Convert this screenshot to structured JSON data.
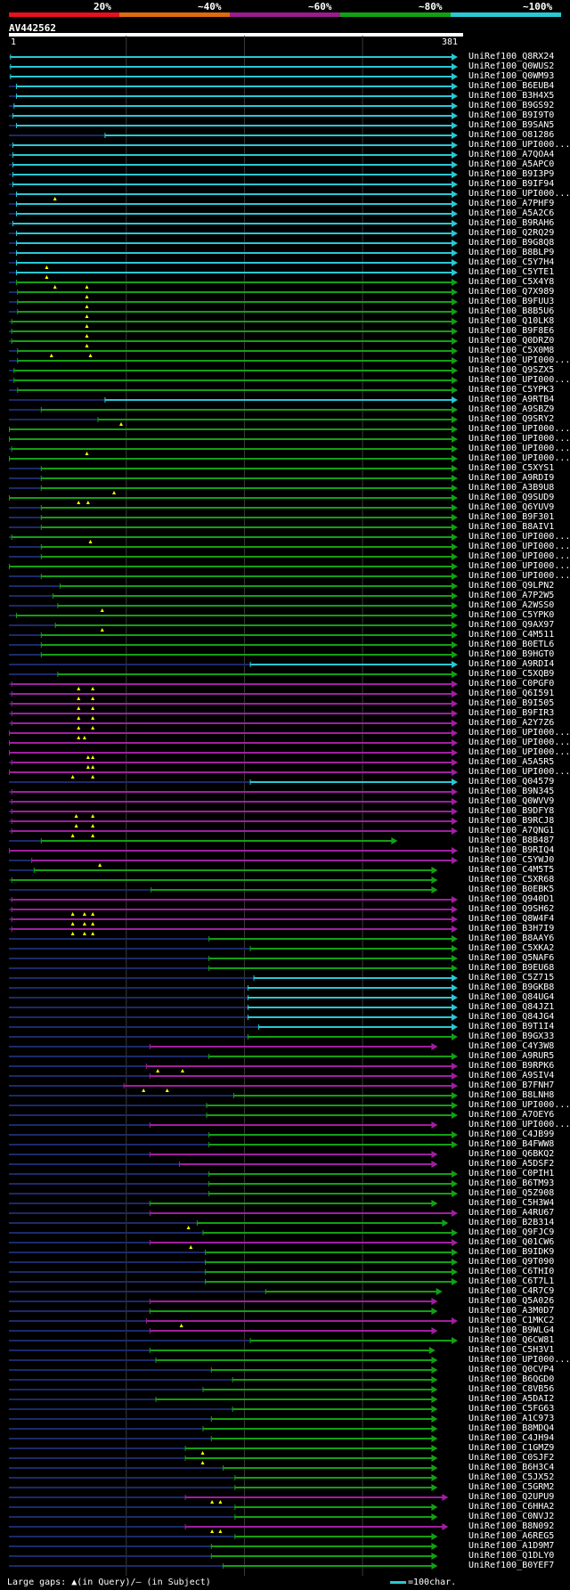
{
  "legend": [
    {
      "label": "20%",
      "color": "#e8101f"
    },
    {
      "label": "~40%",
      "color": "#e06a10"
    },
    {
      "label": "~60%",
      "color": "#9a1c8c"
    },
    {
      "label": "~80%",
      "color": "#13a013"
    },
    {
      "label": "~100%",
      "color": "#29c8d4"
    }
  ],
  "query": {
    "name": "AV442562",
    "start": "1",
    "end": "381",
    "length": 381
  },
  "colors": {
    "cyan": "#29c8d4",
    "green": "#13a013",
    "purple": "#a01fa0",
    "gap": "#1b2a6a",
    "triangle": "#ffff00",
    "grid": "#3a3a3a"
  },
  "footer": {
    "text": "Large gaps: ▲(in Query)/– (in Subject)",
    "scale": "=100char."
  },
  "hits": [
    [
      "UniRef100_Q8RX24",
      "c",
      2,
      381,
      1,
      []
    ],
    [
      "UniRef100_Q0WUS2",
      "c",
      2,
      381,
      1,
      []
    ],
    [
      "UniRef100_Q0WM93",
      "c",
      2,
      381,
      1,
      []
    ],
    [
      "UniRef100_B6EUB4",
      "c",
      7,
      381,
      1,
      []
    ],
    [
      "UniRef100_B3H4X5",
      "c",
      7,
      381,
      1,
      []
    ],
    [
      "UniRef100_B9GS92",
      "c",
      5,
      381,
      1,
      []
    ],
    [
      "UniRef100_B9I9T0",
      "c",
      4,
      381,
      1,
      []
    ],
    [
      "UniRef100_B9SAN5",
      "c",
      7,
      381,
      1,
      []
    ],
    [
      "UniRef100_O81286",
      "c",
      82,
      381,
      1,
      []
    ],
    [
      "UniRef100_UPI000...",
      "c",
      4,
      381,
      1,
      []
    ],
    [
      "UniRef100_A7QOA4",
      "c",
      4,
      381,
      1,
      []
    ],
    [
      "UniRef100_A5APC0",
      "c",
      4,
      381,
      1,
      []
    ],
    [
      "UniRef100_B9I3P9",
      "c",
      4,
      381,
      1,
      []
    ],
    [
      "UniRef100_B9IF94",
      "c",
      4,
      381,
      1,
      []
    ],
    [
      "UniRef100_UPI000...",
      "c",
      7,
      381,
      1,
      [
        40
      ]
    ],
    [
      "UniRef100_A7PHF9",
      "c",
      7,
      381,
      1,
      []
    ],
    [
      "UniRef100_A5A2C6",
      "c",
      7,
      381,
      1,
      []
    ],
    [
      "UniRef100_B9RAH6",
      "c",
      4,
      381,
      1,
      []
    ],
    [
      "UniRef100_Q2RQ29",
      "c",
      7,
      381,
      1,
      []
    ],
    [
      "UniRef100_B9G8Q8",
      "c",
      7,
      381,
      1,
      []
    ],
    [
      "UniRef100_B8BLP9",
      "c",
      7,
      381,
      1,
      []
    ],
    [
      "UniRef100_C5Y7H4",
      "c",
      7,
      381,
      1,
      [
        33
      ]
    ],
    [
      "UniRef100_C5YTE1",
      "c",
      7,
      381,
      1,
      [
        33
      ]
    ],
    [
      "UniRef100_C5X4Y8",
      "g",
      7,
      381,
      1,
      [
        40,
        67
      ]
    ],
    [
      "UniRef100_Q7X989",
      "g",
      8,
      381,
      1,
      [
        67
      ]
    ],
    [
      "UniRef100_B9FUU3",
      "g",
      8,
      381,
      1,
      [
        67
      ]
    ],
    [
      "UniRef100_B8B5U6",
      "g",
      8,
      381,
      1,
      [
        67
      ]
    ],
    [
      "UniRef100_Q10LK8",
      "g",
      3,
      381,
      1,
      [
        67
      ]
    ],
    [
      "UniRef100_B9F8E6",
      "g",
      3,
      381,
      1,
      [
        67
      ]
    ],
    [
      "UniRef100_Q0DRZ0",
      "g",
      3,
      381,
      1,
      [
        67
      ]
    ],
    [
      "UniRef100_C5X0M8",
      "g",
      8,
      381,
      1,
      [
        37,
        70
      ]
    ],
    [
      "UniRef100_UPI000...",
      "g",
      8,
      381,
      1,
      []
    ],
    [
      "UniRef100_Q9SZX5",
      "g",
      5,
      381,
      1,
      []
    ],
    [
      "UniRef100_UPI000...",
      "g",
      5,
      381,
      1,
      []
    ],
    [
      "UniRef100_C5YPK3",
      "g",
      8,
      381,
      1,
      []
    ],
    [
      "UniRef100_A9RTB4",
      "c",
      82,
      381,
      1,
      []
    ],
    [
      "UniRef100_A9SBZ9",
      "g",
      28,
      381,
      1,
      []
    ],
    [
      "UniRef100_Q9SRY2",
      "g",
      76,
      381,
      1,
      [
        96
      ]
    ],
    [
      "UniRef100_UPI000...",
      "g",
      1,
      381,
      1,
      []
    ],
    [
      "UniRef100_UPI000...",
      "g",
      1,
      381,
      1,
      []
    ],
    [
      "UniRef100_UPI000...",
      "g",
      3,
      381,
      1,
      [
        67
      ]
    ],
    [
      "UniRef100_UPI000...",
      "g",
      1,
      381,
      1,
      []
    ],
    [
      "UniRef100_C5XYS1",
      "g",
      28,
      381,
      1,
      []
    ],
    [
      "UniRef100_A9RDI9",
      "g",
      28,
      381,
      1,
      []
    ],
    [
      "UniRef100_A3B9U8",
      "g",
      28,
      381,
      1,
      [
        90
      ]
    ],
    [
      "UniRef100_Q9SUD9",
      "g",
      1,
      381,
      1,
      [
        60,
        68
      ]
    ],
    [
      "UniRef100_Q6YUV9",
      "g",
      28,
      381,
      1,
      []
    ],
    [
      "UniRef100_B9F301",
      "g",
      28,
      381,
      1,
      []
    ],
    [
      "UniRef100_B8AIV1",
      "g",
      28,
      381,
      1,
      []
    ],
    [
      "UniRef100_UPI000...",
      "g",
      3,
      381,
      1,
      [
        70
      ]
    ],
    [
      "UniRef100_UPI000...",
      "g",
      28,
      381,
      1,
      []
    ],
    [
      "UniRef100_UPI000...",
      "g",
      28,
      381,
      1,
      []
    ],
    [
      "UniRef100_UPI000...",
      "g",
      1,
      381,
      1,
      []
    ],
    [
      "UniRef100_UPI000...",
      "g",
      28,
      381,
      1,
      []
    ],
    [
      "UniRef100_Q9LPN2",
      "g",
      44,
      381,
      1,
      []
    ],
    [
      "UniRef100_A7P2W5",
      "g",
      38,
      381,
      1,
      []
    ],
    [
      "UniRef100_A2WSS0",
      "g",
      42,
      381,
      1,
      [
        80
      ]
    ],
    [
      "UniRef100_C5YPK0",
      "g",
      7,
      381,
      1,
      []
    ],
    [
      "UniRef100_Q9AX97",
      "g",
      40,
      381,
      1,
      [
        80
      ]
    ],
    [
      "UniRef100_C4M511",
      "g",
      28,
      381,
      1,
      []
    ],
    [
      "UniRef100_B0ETL6",
      "g",
      28,
      381,
      1,
      []
    ],
    [
      "UniRef100_B9HGT0",
      "g",
      28,
      381,
      1,
      []
    ],
    [
      "UniRef100_A9RDI4",
      "c",
      205,
      381,
      1,
      []
    ],
    [
      "UniRef100_C5XQB9",
      "g",
      42,
      381,
      1,
      []
    ],
    [
      "UniRef100_C0PGF0",
      "p",
      3,
      381,
      1,
      [
        60,
        72
      ]
    ],
    [
      "UniRef100_Q6I591",
      "p",
      3,
      381,
      1,
      [
        60,
        72
      ]
    ],
    [
      "UniRef100_B9I505",
      "p",
      3,
      381,
      1,
      [
        60,
        72
      ]
    ],
    [
      "UniRef100_B9FIR3",
      "p",
      3,
      381,
      1,
      [
        60,
        72
      ]
    ],
    [
      "UniRef100_A2Y7Z6",
      "p",
      3,
      381,
      1,
      [
        60,
        72
      ]
    ],
    [
      "UniRef100_UPI000...",
      "p",
      1,
      381,
      1,
      [
        60,
        65
      ]
    ],
    [
      "UniRef100_UPI000...",
      "p",
      1,
      381,
      1,
      []
    ],
    [
      "UniRef100_UPI000...",
      "p",
      1,
      381,
      1,
      [
        68,
        72
      ]
    ],
    [
      "UniRef100_A5A5R5",
      "p",
      3,
      381,
      1,
      [
        68,
        72
      ]
    ],
    [
      "UniRef100_UPI000...",
      "p",
      1,
      381,
      1,
      [
        55,
        72
      ]
    ],
    [
      "UniRef100_Q04579",
      "c",
      205,
      381,
      1,
      []
    ],
    [
      "UniRef100_B9N345",
      "p",
      3,
      381,
      1,
      []
    ],
    [
      "UniRef100_Q0WVV9",
      "p",
      3,
      381,
      1,
      []
    ],
    [
      "UniRef100_B9DFY8",
      "p",
      3,
      381,
      1,
      [
        58,
        72
      ]
    ],
    [
      "UniRef100_B9RCJ8",
      "p",
      3,
      381,
      1,
      [
        58,
        72
      ]
    ],
    [
      "UniRef100_A7QNG1",
      "p",
      3,
      381,
      1,
      [
        55,
        72
      ]
    ],
    [
      "UniRef100_B8B487",
      "g",
      28,
      330,
      1,
      []
    ],
    [
      "UniRef100_B9RIQ4",
      "p",
      1,
      381,
      1,
      []
    ],
    [
      "UniRef100_C5YWJ0",
      "p",
      20,
      381,
      1,
      [
        78
      ]
    ],
    [
      "UniRef100_C4M5T5",
      "g",
      22,
      364,
      1,
      []
    ],
    [
      "UniRef100_C5XR68",
      "g",
      3,
      364,
      1,
      []
    ],
    [
      "UniRef100_B0EBK5",
      "g",
      121,
      364,
      1,
      []
    ],
    [
      "UniRef100_Q940D1",
      "p",
      3,
      381,
      1,
      []
    ],
    [
      "UniRef100_Q9SH62",
      "p",
      3,
      381,
      1,
      [
        55,
        65,
        72
      ]
    ],
    [
      "UniRef100_Q8W4F4",
      "p",
      3,
      381,
      1,
      [
        55,
        65,
        72
      ]
    ],
    [
      "UniRef100_B3H7I9",
      "p",
      3,
      381,
      1,
      [
        55,
        65,
        72
      ]
    ],
    [
      "UniRef100_B8AAY6",
      "g",
      170,
      381,
      1,
      []
    ],
    [
      "UniRef100_C5XKA2",
      "g",
      205,
      381,
      1,
      []
    ],
    [
      "UniRef100_Q5NAF6",
      "g",
      170,
      381,
      1,
      []
    ],
    [
      "UniRef100_B9EU68",
      "g",
      170,
      381,
      1,
      []
    ],
    [
      "UniRef100_C5Z715",
      "c",
      208,
      381,
      1,
      []
    ],
    [
      "UniRef100_B9GKB8",
      "c",
      203,
      381,
      1,
      []
    ],
    [
      "UniRef100_Q84UG4",
      "c",
      203,
      381,
      1,
      []
    ],
    [
      "UniRef100_Q84JZ1",
      "c",
      203,
      381,
      1,
      []
    ],
    [
      "UniRef100_Q84JG4",
      "c",
      203,
      381,
      1,
      []
    ],
    [
      "UniRef100_B9T1I4",
      "c",
      212,
      381,
      1,
      []
    ],
    [
      "UniRef100_B9GX33",
      "g",
      203,
      381,
      1,
      []
    ],
    [
      "UniRef100_C4Y3W8",
      "p",
      120,
      364,
      1,
      []
    ],
    [
      "UniRef100_A9RUR5",
      "g",
      170,
      381,
      1,
      []
    ],
    [
      "UniRef100_B9RPK6",
      "p",
      117,
      381,
      1,
      [
        127,
        148
      ]
    ],
    [
      "UniRef100_A9SIV4",
      "p",
      120,
      381,
      1,
      []
    ],
    [
      "UniRef100_B7FNH7",
      "p",
      98,
      381,
      1,
      [
        115,
        135
      ]
    ],
    [
      "UniRef100_B8LNH8",
      "g",
      191,
      381,
      1,
      []
    ],
    [
      "UniRef100_UPI000...",
      "g",
      168,
      381,
      1,
      []
    ],
    [
      "UniRef100_A7OEY6",
      "g",
      168,
      381,
      1,
      []
    ],
    [
      "UniRef100_UPI000...",
      "p",
      120,
      364,
      1,
      []
    ],
    [
      "UniRef100_C4JB99",
      "g",
      170,
      381,
      1,
      []
    ],
    [
      "UniRef100_B4FWW8",
      "g",
      170,
      381,
      1,
      []
    ],
    [
      "UniRef100_Q6BKQ2",
      "p",
      120,
      364,
      1,
      []
    ],
    [
      "UniRef100_A5DSF2",
      "p",
      145,
      364,
      1,
      []
    ],
    [
      "UniRef100_C0PIH1",
      "g",
      170,
      381,
      1,
      []
    ],
    [
      "UniRef100_B6TM93",
      "g",
      170,
      381,
      1,
      []
    ],
    [
      "UniRef100_Q5Z908",
      "g",
      170,
      381,
      1,
      []
    ],
    [
      "UniRef100_C5H3W4",
      "g",
      120,
      364,
      1,
      []
    ],
    [
      "UniRef100_A4RU67",
      "p",
      120,
      381,
      1,
      []
    ],
    [
      "UniRef100_B2B314",
      "g",
      160,
      373,
      1,
      [
        153
      ]
    ],
    [
      "UniRef100_Q9FJC9",
      "g",
      165,
      381,
      1,
      []
    ],
    [
      "UniRef100_Q01CW6",
      "p",
      120,
      381,
      1,
      [
        155
      ]
    ],
    [
      "UniRef100_B9IDK9",
      "g",
      167,
      381,
      1,
      []
    ],
    [
      "UniRef100_Q9T090",
      "g",
      167,
      381,
      1,
      []
    ],
    [
      "UniRef100_C6THI0",
      "g",
      167,
      381,
      1,
      []
    ],
    [
      "UniRef100_C6T7L1",
      "g",
      167,
      381,
      1,
      []
    ],
    [
      "UniRef100_C4R7C9",
      "g",
      218,
      368,
      1,
      []
    ],
    [
      "UniRef100_Q5A026",
      "p",
      120,
      364,
      1,
      []
    ],
    [
      "UniRef100_A3M0D7",
      "g",
      120,
      364,
      1,
      []
    ],
    [
      "UniRef100_C1MKC2",
      "p",
      117,
      381,
      1,
      [
        147
      ]
    ],
    [
      "UniRef100_B9WLG4",
      "p",
      120,
      364,
      1,
      []
    ],
    [
      "UniRef100_Q6CW81",
      "g",
      205,
      381,
      1,
      []
    ],
    [
      "UniRef100_C5H3V1",
      "g",
      120,
      362,
      1,
      []
    ],
    [
      "UniRef100_UPI000...",
      "g",
      125,
      364,
      1,
      []
    ],
    [
      "UniRef100_Q0CVP4",
      "g",
      172,
      364,
      1,
      []
    ],
    [
      "UniRef100_B6QGD0",
      "g",
      190,
      364,
      1,
      []
    ],
    [
      "UniRef100_C8VB56",
      "g",
      165,
      364,
      1,
      []
    ],
    [
      "UniRef100_A5DAI2",
      "g",
      125,
      364,
      1,
      []
    ],
    [
      "UniRef100_C5FG63",
      "g",
      190,
      364,
      1,
      []
    ],
    [
      "UniRef100_A1C973",
      "g",
      172,
      364,
      1,
      []
    ],
    [
      "UniRef100_B8MDQ4",
      "g",
      165,
      364,
      1,
      []
    ],
    [
      "UniRef100_C4JH94",
      "g",
      172,
      364,
      1,
      []
    ],
    [
      "UniRef100_C1GMZ9",
      "g",
      150,
      364,
      1,
      [
        165
      ]
    ],
    [
      "UniRef100_C0SJF2",
      "g",
      150,
      364,
      1,
      [
        165
      ]
    ],
    [
      "UniRef100_B6H3C4",
      "g",
      182,
      364,
      1,
      []
    ],
    [
      "UniRef100_C5JX52",
      "g",
      192,
      364,
      1,
      []
    ],
    [
      "UniRef100_C5GRM2",
      "g",
      192,
      364,
      1,
      []
    ],
    [
      "UniRef100_Q2UPU9",
      "p",
      150,
      373,
      1,
      [
        173,
        180
      ]
    ],
    [
      "UniRef100_C6HHA2",
      "g",
      192,
      364,
      1,
      []
    ],
    [
      "UniRef100_C0NVJ2",
      "g",
      192,
      364,
      1,
      []
    ],
    [
      "UniRef100_B8N092",
      "p",
      150,
      373,
      1,
      [
        173,
        180
      ]
    ],
    [
      "UniRef100_A6REG5",
      "g",
      192,
      364,
      1,
      []
    ],
    [
      "UniRef100_A1D9M7",
      "g",
      172,
      364,
      1,
      []
    ],
    [
      "UniRef100_Q1DLY0",
      "g",
      172,
      364,
      1,
      []
    ],
    [
      "UniRef100_B0YEF7",
      "g",
      182,
      364,
      1,
      []
    ]
  ]
}
